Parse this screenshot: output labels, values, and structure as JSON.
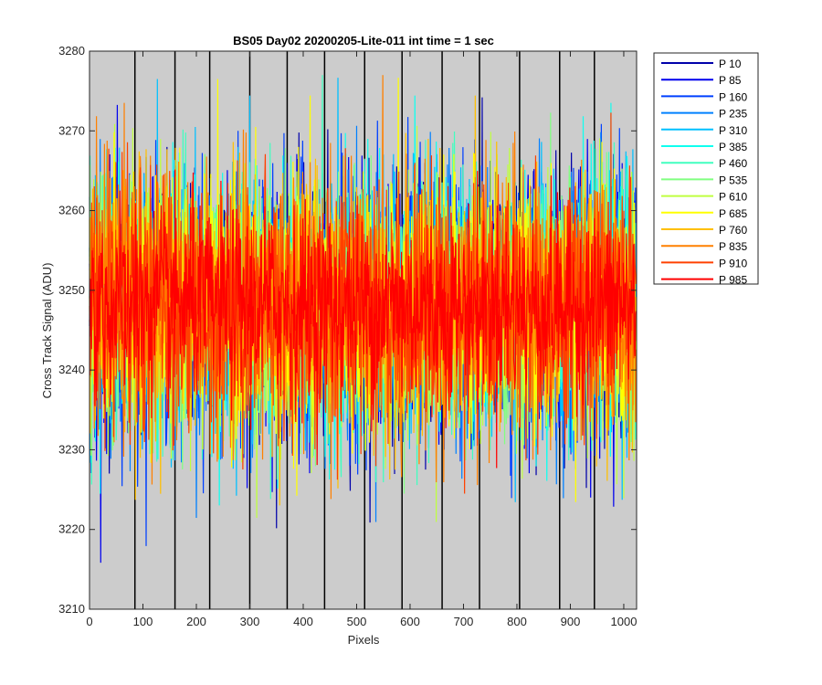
{
  "chart_data": {
    "type": "line",
    "title": "BS05 Day02 20200205-Lite-011 int time = 1 sec",
    "xlabel": "Pixels",
    "ylabel": "Cross Track Signal (ADU)",
    "xlim": [
      0,
      1024
    ],
    "ylim": [
      3210,
      3280
    ],
    "xticks": [
      0,
      100,
      200,
      300,
      400,
      500,
      600,
      700,
      800,
      900,
      1000
    ],
    "yticks": [
      3210,
      3220,
      3230,
      3240,
      3250,
      3260,
      3270,
      3280
    ],
    "background": "#cccccc",
    "vertical_lines_x": [
      85,
      160,
      225,
      300,
      370,
      440,
      515,
      585,
      660,
      730,
      805,
      880,
      945
    ],
    "legend_position": "outside-right",
    "series": [
      {
        "name": "P 10",
        "color": "#0000aa",
        "mean": 3248,
        "std": 8
      },
      {
        "name": "P 85",
        "color": "#0000ee",
        "mean": 3248,
        "std": 8
      },
      {
        "name": "P 160",
        "color": "#0040ff",
        "mean": 3248,
        "std": 8
      },
      {
        "name": "P 235",
        "color": "#0080ff",
        "mean": 3248,
        "std": 8
      },
      {
        "name": "P 310",
        "color": "#00c0ff",
        "mean": 3248,
        "std": 8
      },
      {
        "name": "P 385",
        "color": "#10ffef",
        "mean": 3248,
        "std": 8
      },
      {
        "name": "P 460",
        "color": "#40ffbf",
        "mean": 3248,
        "std": 8
      },
      {
        "name": "P 535",
        "color": "#80ff80",
        "mean": 3248,
        "std": 8
      },
      {
        "name": "P 610",
        "color": "#bfff40",
        "mean": 3248,
        "std": 8
      },
      {
        "name": "P 685",
        "color": "#ffff00",
        "mean": 3248,
        "std": 8
      },
      {
        "name": "P 760",
        "color": "#ffbf00",
        "mean": 3248,
        "std": 8
      },
      {
        "name": "P 835",
        "color": "#ff8000",
        "mean": 3248,
        "std": 8
      },
      {
        "name": "P 910",
        "color": "#ff4000",
        "mean": 3248,
        "std": 8
      },
      {
        "name": "P 985",
        "color": "#ff0000",
        "mean": 3248,
        "std": 6
      }
    ]
  }
}
